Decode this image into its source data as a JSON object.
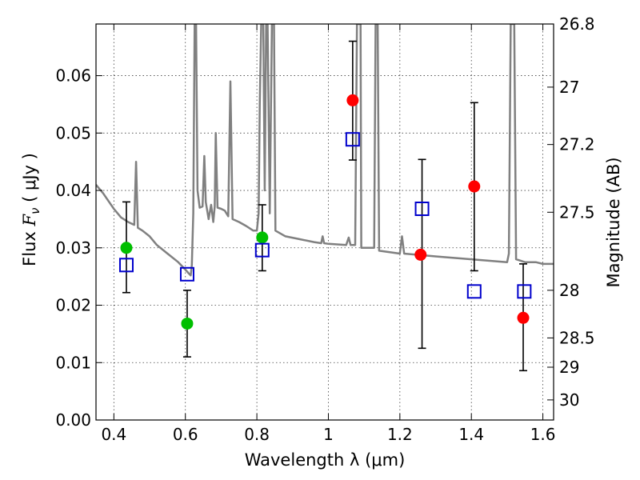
{
  "chart_data": {
    "type": "scatter",
    "xlabel": "Wavelength  λ (μm)",
    "ylabel": "Flux  Fν ( μJy )",
    "ylabel_parts": {
      "prefix": "Flux  ",
      "symbol": "F",
      "subscript": "ν",
      "suffix": "  (  μJy )"
    },
    "y2label": "Magnitude (AB)",
    "xlim": [
      0.35,
      1.63
    ],
    "ylim": [
      0.0,
      0.069
    ],
    "grid": true,
    "x_ticks": [
      {
        "value": 0.4,
        "label": "0.4"
      },
      {
        "value": 0.6,
        "label": "0.6"
      },
      {
        "value": 0.8,
        "label": "0.8"
      },
      {
        "value": 1.0,
        "label": "1"
      },
      {
        "value": 1.2,
        "label": "1.2"
      },
      {
        "value": 1.4,
        "label": "1.4"
      },
      {
        "value": 1.6,
        "label": "1.6"
      }
    ],
    "y_ticks": [
      {
        "value": 0.0,
        "label": "0.00"
      },
      {
        "value": 0.01,
        "label": "0.01"
      },
      {
        "value": 0.02,
        "label": "0.02"
      },
      {
        "value": 0.03,
        "label": "0.03"
      },
      {
        "value": 0.04,
        "label": "0.04"
      },
      {
        "value": 0.05,
        "label": "0.05"
      },
      {
        "value": 0.06,
        "label": "0.06"
      }
    ],
    "y2_ticks": [
      {
        "flux": 0.069,
        "label": "26.8"
      },
      {
        "flux": 0.058,
        "label": "27"
      },
      {
        "flux": 0.048,
        "label": "27.2"
      },
      {
        "flux": 0.0362,
        "label": "27.5"
      },
      {
        "flux": 0.0226,
        "label": "28"
      },
      {
        "flux": 0.0143,
        "label": "28.5"
      },
      {
        "flux": 0.0092,
        "label": "29"
      },
      {
        "flux": 0.0035,
        "label": "30"
      }
    ],
    "series": [
      {
        "name": "model-spectrum",
        "kind": "line",
        "color": "#808080",
        "points": [
          [
            0.35,
            0.041
          ],
          [
            0.37,
            0.0395
          ],
          [
            0.4,
            0.0368
          ],
          [
            0.42,
            0.0353
          ],
          [
            0.44,
            0.0345
          ],
          [
            0.457,
            0.034
          ],
          [
            0.462,
            0.045
          ],
          [
            0.467,
            0.0335
          ],
          [
            0.48,
            0.033
          ],
          [
            0.5,
            0.032
          ],
          [
            0.52,
            0.0305
          ],
          [
            0.55,
            0.029
          ],
          [
            0.58,
            0.0275
          ],
          [
            0.6,
            0.0262
          ],
          [
            0.61,
            0.0255
          ],
          [
            0.615,
            0.0252
          ],
          [
            0.618,
            0.027
          ],
          [
            0.622,
            0.036
          ],
          [
            0.626,
            0.069
          ],
          [
            0.63,
            0.069
          ],
          [
            0.634,
            0.04
          ],
          [
            0.64,
            0.037
          ],
          [
            0.648,
            0.0372
          ],
          [
            0.653,
            0.046
          ],
          [
            0.657,
            0.038
          ],
          [
            0.665,
            0.035
          ],
          [
            0.672,
            0.0375
          ],
          [
            0.678,
            0.0345
          ],
          [
            0.682,
            0.0372
          ],
          [
            0.685,
            0.05
          ],
          [
            0.69,
            0.037
          ],
          [
            0.7,
            0.0368
          ],
          [
            0.71,
            0.0365
          ],
          [
            0.72,
            0.0355
          ],
          [
            0.726,
            0.059
          ],
          [
            0.732,
            0.035
          ],
          [
            0.75,
            0.0345
          ],
          [
            0.77,
            0.0338
          ],
          [
            0.79,
            0.033
          ],
          [
            0.8,
            0.033
          ],
          [
            0.805,
            0.036
          ],
          [
            0.808,
            0.055
          ],
          [
            0.812,
            0.069
          ],
          [
            0.818,
            0.069
          ],
          [
            0.822,
            0.04
          ],
          [
            0.826,
            0.069
          ],
          [
            0.83,
            0.069
          ],
          [
            0.836,
            0.036
          ],
          [
            0.842,
            0.069
          ],
          [
            0.848,
            0.069
          ],
          [
            0.852,
            0.033
          ],
          [
            0.88,
            0.032
          ],
          [
            0.92,
            0.0315
          ],
          [
            0.96,
            0.031
          ],
          [
            0.98,
            0.0308
          ],
          [
            0.984,
            0.032
          ],
          [
            0.988,
            0.0308
          ],
          [
            1.0,
            0.0307
          ],
          [
            1.05,
            0.0305
          ],
          [
            1.057,
            0.0318
          ],
          [
            1.062,
            0.0305
          ],
          [
            1.075,
            0.0305
          ],
          [
            1.08,
            0.069
          ],
          [
            1.09,
            0.069
          ],
          [
            1.092,
            0.03
          ],
          [
            1.128,
            0.03
          ],
          [
            1.132,
            0.069
          ],
          [
            1.138,
            0.069
          ],
          [
            1.142,
            0.0295
          ],
          [
            1.2,
            0.029
          ],
          [
            1.206,
            0.032
          ],
          [
            1.212,
            0.029
          ],
          [
            1.3,
            0.0285
          ],
          [
            1.4,
            0.028
          ],
          [
            1.5,
            0.0275
          ],
          [
            1.505,
            0.029
          ],
          [
            1.51,
            0.069
          ],
          [
            1.52,
            0.069
          ],
          [
            1.525,
            0.028
          ],
          [
            1.55,
            0.0275
          ],
          [
            1.58,
            0.0275
          ],
          [
            1.6,
            0.0272
          ],
          [
            1.63,
            0.0272
          ]
        ]
      },
      {
        "name": "green-points",
        "kind": "circle",
        "color": "#00bf00",
        "points": [
          {
            "x": 0.435,
            "y": 0.03
          },
          {
            "x": 0.605,
            "y": 0.0168
          },
          {
            "x": 0.815,
            "y": 0.0318
          }
        ]
      },
      {
        "name": "red-points",
        "kind": "circle",
        "color": "#ff0000",
        "points": [
          {
            "x": 1.068,
            "y": 0.0557
          },
          {
            "x": 1.258,
            "y": 0.0288
          },
          {
            "x": 1.408,
            "y": 0.0407
          },
          {
            "x": 1.545,
            "y": 0.0178
          }
        ]
      },
      {
        "name": "model-bandpass-squares",
        "kind": "square",
        "color": "#0000cc",
        "points": [
          {
            "x": 0.435,
            "y": 0.027
          },
          {
            "x": 0.605,
            "y": 0.0254
          },
          {
            "x": 0.815,
            "y": 0.0296
          },
          {
            "x": 1.068,
            "y": 0.0489
          },
          {
            "x": 1.262,
            "y": 0.0368
          },
          {
            "x": 1.408,
            "y": 0.0224
          },
          {
            "x": 1.548,
            "y": 0.0224
          }
        ]
      },
      {
        "name": "error-bars",
        "kind": "errorbar",
        "color": "#000000",
        "points": [
          {
            "x": 0.435,
            "low": 0.0222,
            "high": 0.038
          },
          {
            "x": 0.605,
            "low": 0.011,
            "high": 0.0226
          },
          {
            "x": 0.815,
            "low": 0.026,
            "high": 0.0375
          },
          {
            "x": 1.068,
            "low": 0.0453,
            "high": 0.066
          },
          {
            "x": 1.262,
            "low": 0.0125,
            "high": 0.0454
          },
          {
            "x": 1.408,
            "low": 0.026,
            "high": 0.0553
          },
          {
            "x": 1.545,
            "low": 0.0086,
            "high": 0.0272
          }
        ]
      }
    ]
  }
}
